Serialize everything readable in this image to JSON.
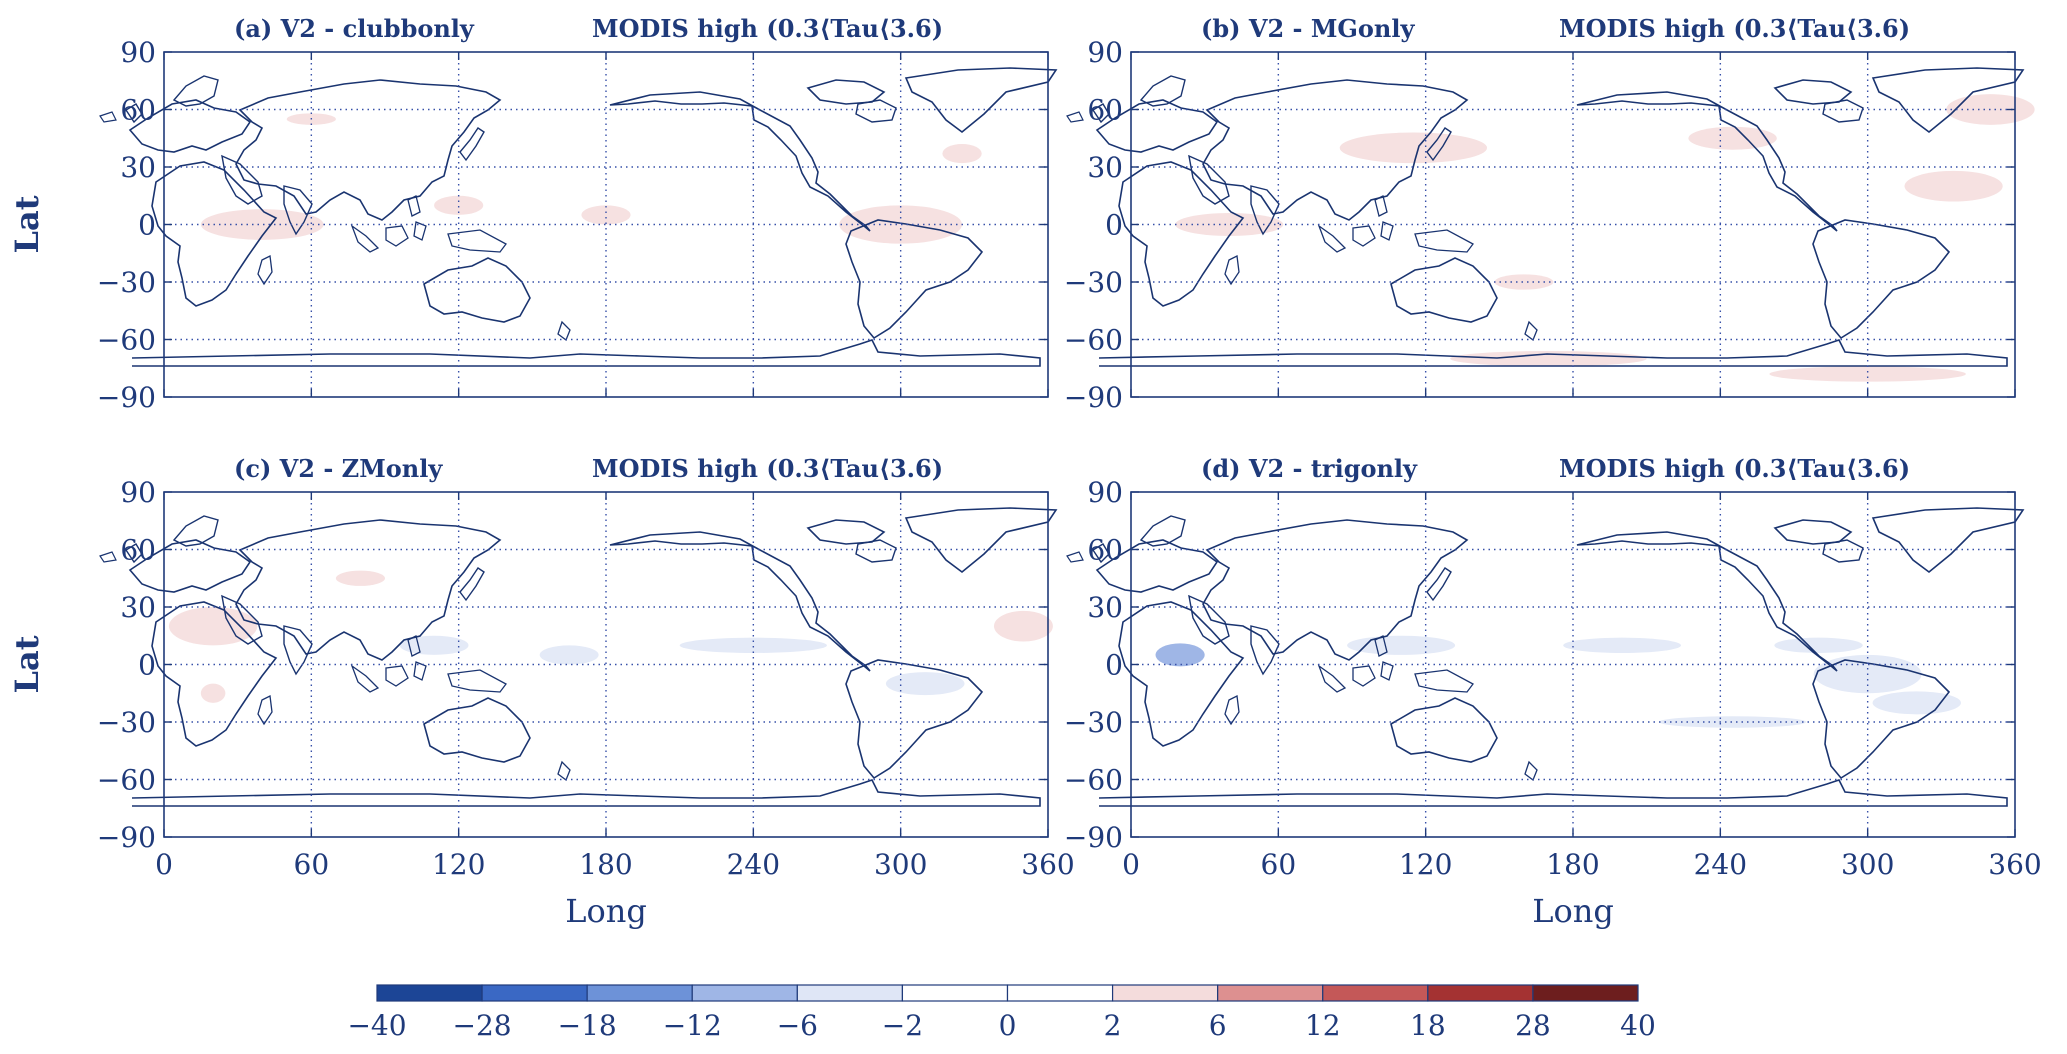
{
  "figure": {
    "panels": [
      {
        "title_left": "(a) V2 - clubbonly",
        "title_right": "MODIS high (0.3⟨Tau⟨3.6)",
        "show_ylabel": true,
        "show_xlabel": false
      },
      {
        "title_left": "(b) V2 - MGonly",
        "title_right": "MODIS high (0.3⟨Tau⟨3.6)",
        "show_ylabel": false,
        "show_xlabel": false
      },
      {
        "title_left": "(c) V2 - ZMonly",
        "title_right": "MODIS high (0.3⟨Tau⟨3.6)",
        "show_ylabel": true,
        "show_xlabel": true
      },
      {
        "title_left": "(d) V2 - trigonly",
        "title_right": "MODIS high (0.3⟨Tau⟨3.6)",
        "show_ylabel": false,
        "show_xlabel": true
      }
    ],
    "axis": {
      "xlabel": "Long",
      "ylabel": "Lat",
      "xlim": [
        0,
        360
      ],
      "ylim": [
        -90,
        90
      ],
      "xticks": [
        0,
        60,
        120,
        180,
        240,
        300,
        360
      ],
      "yticks": [
        90,
        60,
        30,
        0,
        -30,
        -60,
        -90
      ],
      "xtick_labels": [
        "0",
        "60",
        "120",
        "180",
        "240",
        "300",
        "360"
      ],
      "ytick_labels": [
        "90",
        "60",
        "30",
        "0",
        "−30",
        "−60",
        "−90"
      ],
      "grid": "dotted"
    },
    "colorbar": {
      "levels": [
        "−40",
        "−28",
        "−18",
        "−12",
        "−6",
        "−2",
        "0",
        "2",
        "6",
        "12",
        "18",
        "28",
        "40"
      ],
      "colors": [
        "#1c4596",
        "#3a68c4",
        "#6d92d8",
        "#9fb6e6",
        "#dfe6f6",
        "#ffffff",
        "#ffffff",
        "#f4dcdc",
        "#dd9090",
        "#c45858",
        "#a43232",
        "#6d1e1e"
      ]
    },
    "colors": {
      "axis": "#1f3a7a",
      "coast": "#1a3470",
      "grid": "#3750a8",
      "pos_light": "#f6e1e1",
      "neg_light": "#e4eaf7",
      "neg_medium": "#9fb6e6"
    }
  }
}
